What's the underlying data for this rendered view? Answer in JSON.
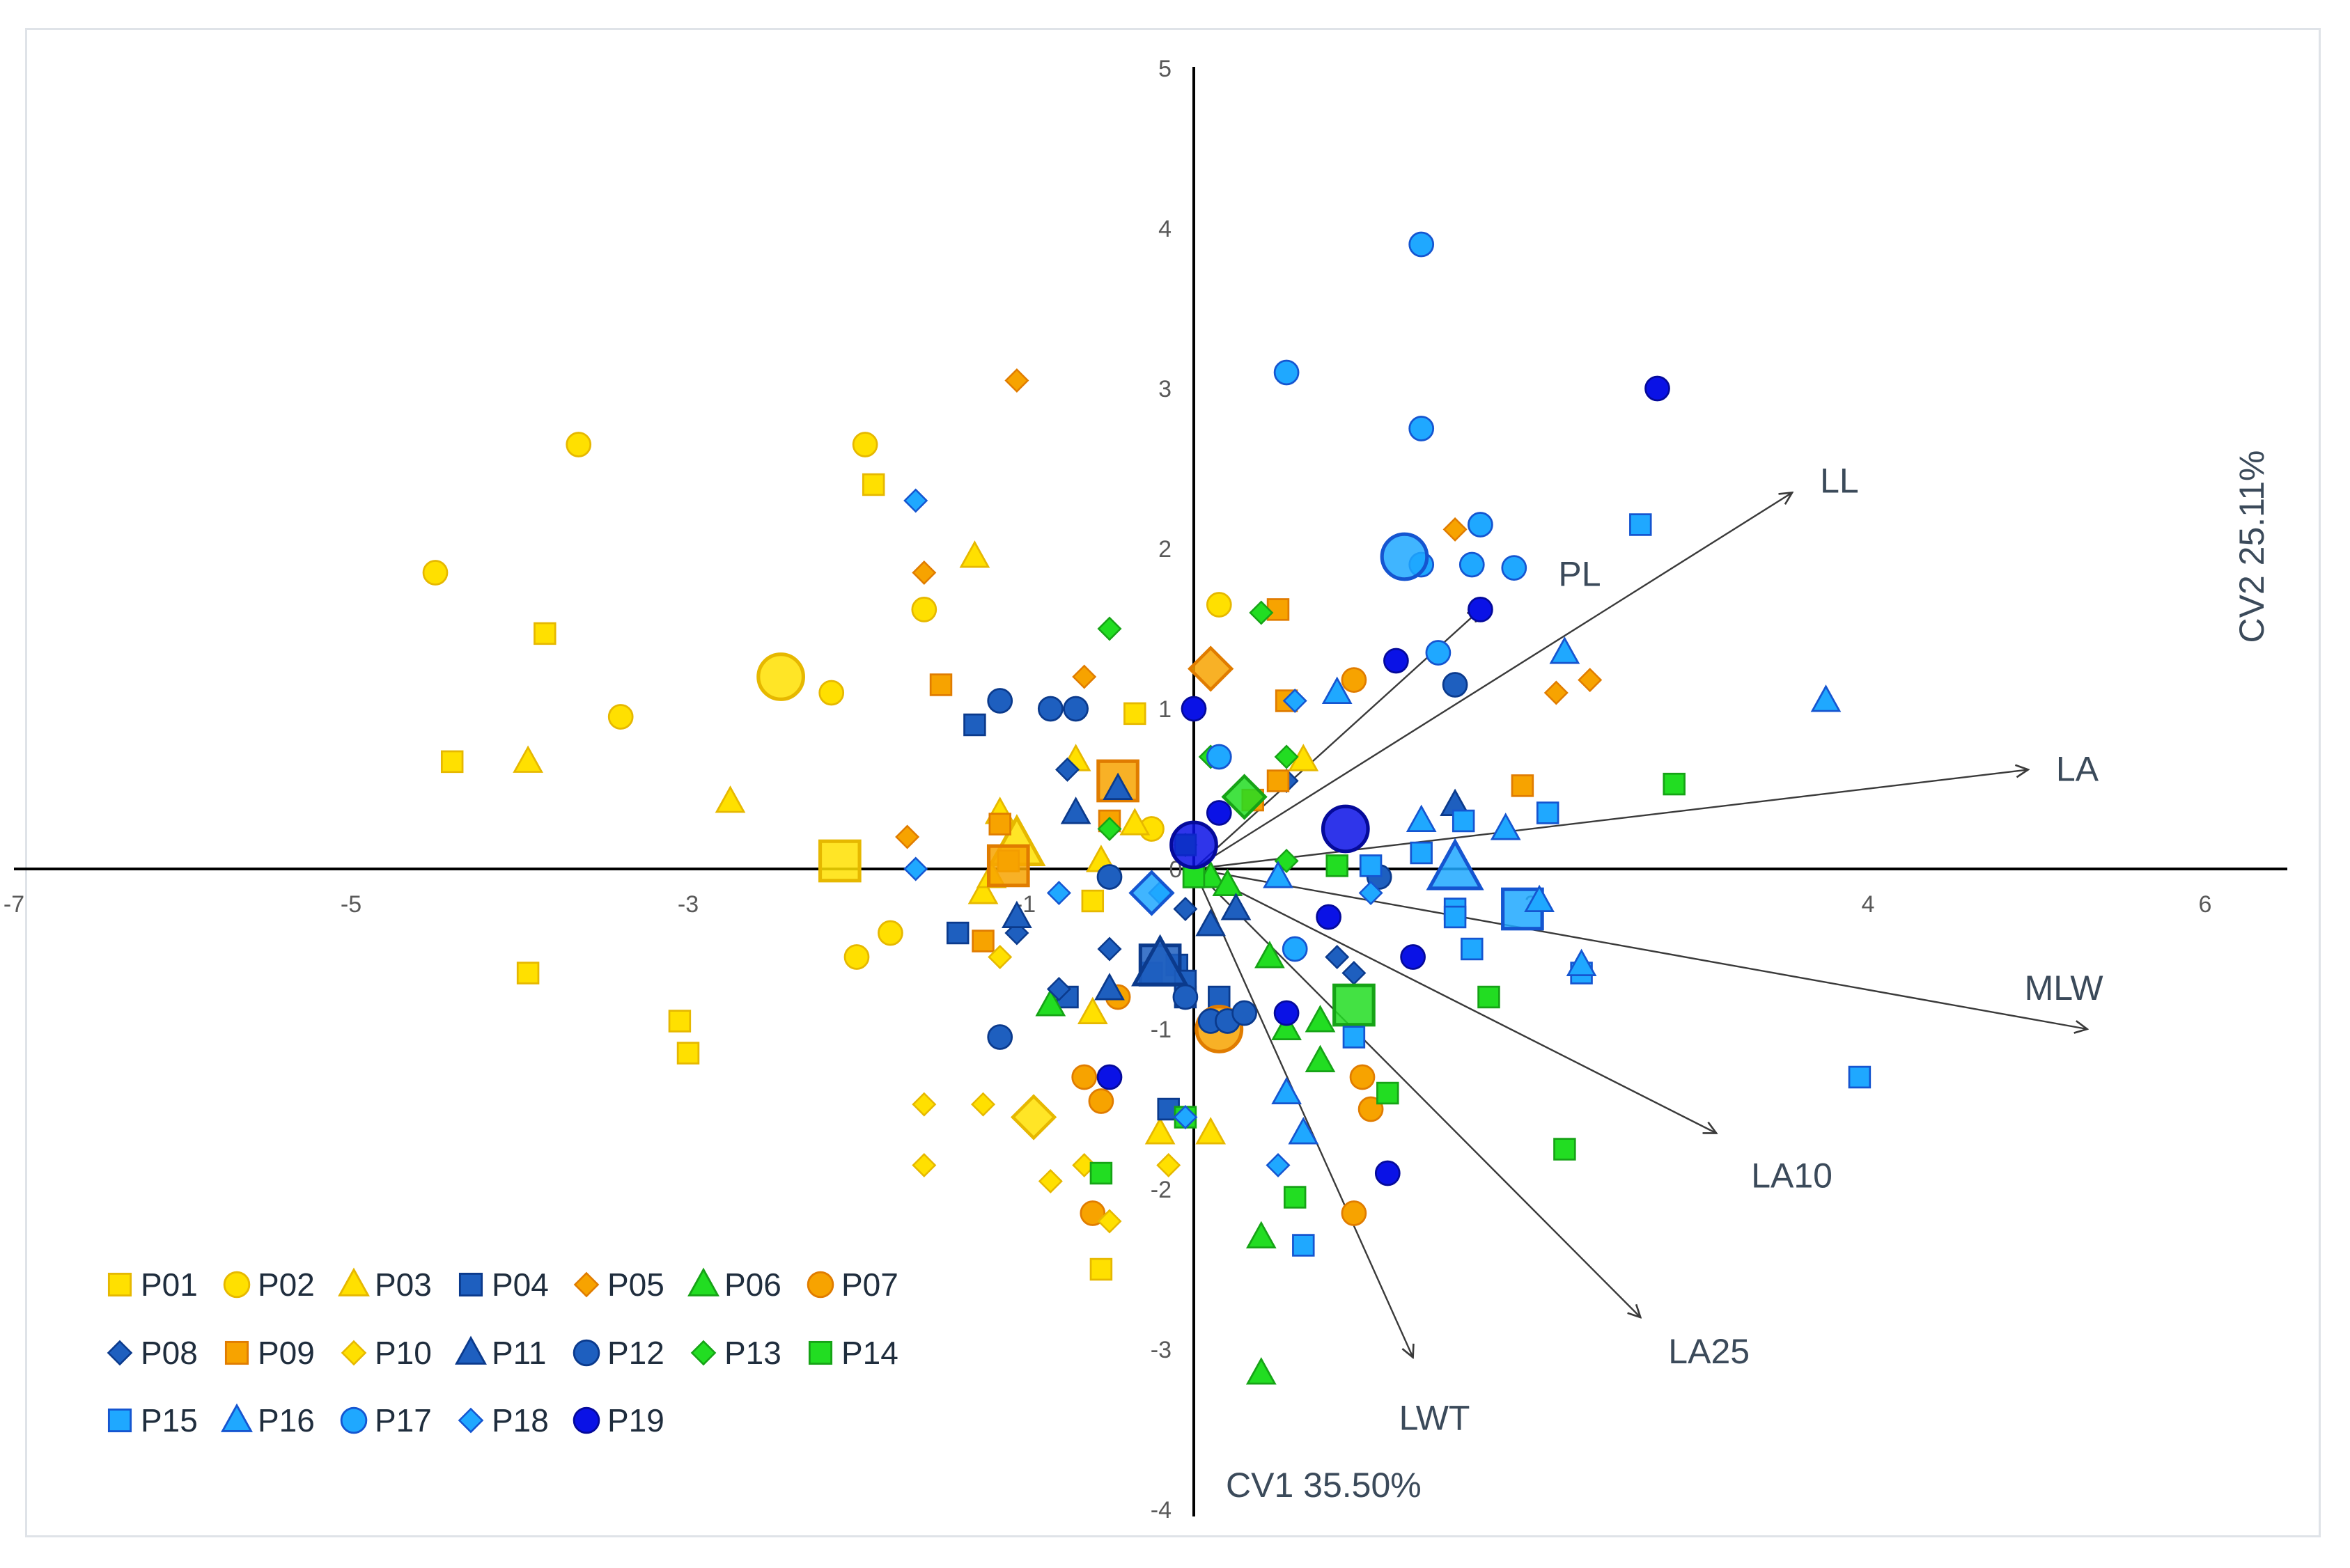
{
  "chart_data": {
    "type": "scatter",
    "title": "",
    "xlabel": "CV1 35.50%",
    "ylabel": "CV2 25.11%",
    "xlim": [
      -7,
      7
    ],
    "ylim": [
      -4,
      5
    ],
    "x_ticks": [
      "-7",
      "-5",
      "-3",
      "-1",
      "0",
      "2",
      "4",
      "6"
    ],
    "x_tick_values": [
      -7,
      -5,
      -3,
      -1,
      0,
      2,
      4,
      6
    ],
    "y_ticks": [
      "-4",
      "-3",
      "-2",
      "-1",
      "1",
      "2",
      "3",
      "4",
      "5"
    ],
    "y_tick_values": [
      -4,
      -3,
      -2,
      -1,
      1,
      2,
      3,
      4,
      5
    ],
    "legend_position": "bottom-left",
    "colors": {
      "yellow": "#FFE000",
      "yellow_edge": "#E6B800",
      "orange": "#F7A300",
      "orange_edge": "#E07C00",
      "darkblue": "#1E5FBF",
      "darkblue_edge": "#0B3A8C",
      "blue": "#1FA8FF",
      "blue_edge": "#1555D0",
      "green": "#22DD22",
      "green_edge": "#16A316",
      "navy": "#0A12E6",
      "navy_edge": "#050A9A"
    },
    "vectors": [
      {
        "name": "LL",
        "x": 3.55,
        "y": 2.35
      },
      {
        "name": "PL",
        "x": 1.7,
        "y": 1.62
      },
      {
        "name": "LA",
        "x": 4.95,
        "y": 0.62
      },
      {
        "name": "MLW",
        "x": 5.3,
        "y": -1.0
      },
      {
        "name": "LA10",
        "x": 3.1,
        "y": -1.65
      },
      {
        "name": "LA25",
        "x": 2.65,
        "y": -2.8
      },
      {
        "name": "LWT",
        "x": 1.3,
        "y": -3.05
      }
    ],
    "series": [
      {
        "name": "P01",
        "marker": "square",
        "color": "yellow",
        "points": [
          [
            -4.4,
            0.67
          ],
          [
            -3.85,
            1.47
          ],
          [
            -3.95,
            -0.65
          ],
          [
            -3.05,
            -0.95
          ],
          [
            -3.0,
            -1.15
          ],
          [
            -1.9,
            2.4
          ],
          [
            -0.35,
            0.97
          ],
          [
            -0.6,
            -0.2
          ],
          [
            -0.55,
            -2.5
          ],
          [
            -2.1,
            0.05,
            "big"
          ]
        ]
      },
      {
        "name": "P02",
        "marker": "circle",
        "color": "yellow",
        "points": [
          [
            -4.5,
            1.85
          ],
          [
            -3.65,
            2.65
          ],
          [
            -3.4,
            0.95
          ],
          [
            -2.15,
            1.1
          ],
          [
            -1.95,
            2.65
          ],
          [
            -1.6,
            1.62
          ],
          [
            -2.0,
            -0.55
          ],
          [
            -1.8,
            -0.4
          ],
          [
            0.15,
            1.65
          ],
          [
            -0.25,
            0.25
          ],
          [
            -2.45,
            1.2,
            "big"
          ]
        ]
      },
      {
        "name": "P03",
        "marker": "triangle",
        "color": "yellow",
        "points": [
          [
            -3.95,
            0.67
          ],
          [
            -2.75,
            0.42
          ],
          [
            -1.3,
            1.95
          ],
          [
            -1.25,
            -0.15
          ],
          [
            -1.2,
            -0.05
          ],
          [
            -1.15,
            0.35
          ],
          [
            -0.7,
            0.68
          ],
          [
            -0.35,
            0.28
          ],
          [
            -0.55,
            0.05
          ],
          [
            0.65,
            0.68
          ],
          [
            -0.6,
            -0.9
          ],
          [
            -0.2,
            -1.65
          ],
          [
            0.1,
            -1.65
          ],
          [
            -1.05,
            0.15,
            "big"
          ]
        ]
      },
      {
        "name": "P04",
        "marker": "square",
        "color": "darkblue",
        "points": [
          [
            -1.3,
            0.9
          ],
          [
            -1.4,
            -0.4
          ],
          [
            -0.75,
            -0.8
          ],
          [
            -0.25,
            -0.65
          ],
          [
            -0.1,
            -0.6
          ],
          [
            -0.05,
            -0.8
          ],
          [
            0.15,
            -0.8
          ],
          [
            -0.15,
            -1.5
          ],
          [
            -0.2,
            -0.6,
            "big"
          ],
          [
            -0.05,
            -0.7
          ]
        ]
      },
      {
        "name": "P05",
        "marker": "diamond",
        "color": "orange",
        "points": [
          [
            -1.05,
            3.05
          ],
          [
            -1.6,
            1.85
          ],
          [
            -0.65,
            1.2
          ],
          [
            -1.7,
            0.2
          ],
          [
            1.55,
            2.12
          ],
          [
            2.15,
            1.1
          ],
          [
            2.35,
            1.18
          ],
          [
            0.1,
            1.25,
            "big"
          ]
        ]
      },
      {
        "name": "P06",
        "marker": "triangle",
        "color": "green",
        "points": [
          [
            -0.85,
            -0.85
          ],
          [
            0.1,
            -0.05
          ],
          [
            0.2,
            -0.1
          ],
          [
            0.45,
            -0.55
          ],
          [
            0.55,
            -1.0
          ],
          [
            0.75,
            -0.95
          ],
          [
            0.75,
            -1.2
          ],
          [
            0.4,
            -2.3
          ],
          [
            0.4,
            -3.15
          ]
        ]
      },
      {
        "name": "P07",
        "marker": "circle",
        "color": "orange",
        "points": [
          [
            -0.65,
            -1.3
          ],
          [
            -0.55,
            -1.45
          ],
          [
            -0.45,
            -0.8
          ],
          [
            -0.6,
            -2.15
          ],
          [
            0.15,
            -1.0,
            "big"
          ],
          [
            0.95,
            1.18
          ],
          [
            1.0,
            -1.3
          ],
          [
            1.05,
            -1.5
          ],
          [
            0.95,
            -2.15
          ]
        ]
      },
      {
        "name": "P08",
        "marker": "diamond",
        "color": "darkblue",
        "points": [
          [
            -0.75,
            0.62
          ],
          [
            -1.05,
            -0.4
          ],
          [
            -0.5,
            -0.5
          ],
          [
            -0.8,
            -0.75
          ],
          [
            0.55,
            0.55
          ],
          [
            0.85,
            -0.55
          ],
          [
            0.95,
            -0.65
          ],
          [
            -0.05,
            -0.25
          ]
        ]
      },
      {
        "name": "P09",
        "marker": "square",
        "color": "orange",
        "points": [
          [
            -1.5,
            1.15
          ],
          [
            -1.15,
            0.28
          ],
          [
            -1.1,
            0.05
          ],
          [
            -1.25,
            -0.45
          ],
          [
            -0.45,
            0.55,
            "big"
          ],
          [
            -0.5,
            0.3
          ],
          [
            0.5,
            1.62
          ],
          [
            0.55,
            1.05
          ],
          [
            0.5,
            0.55
          ],
          [
            0.35,
            0.43
          ],
          [
            1.95,
            0.52
          ],
          [
            -1.1,
            0.02,
            "big"
          ]
        ]
      },
      {
        "name": "P10",
        "marker": "diamond",
        "color": "yellow",
        "points": [
          [
            -1.6,
            -1.47
          ],
          [
            -1.25,
            -1.47
          ],
          [
            -1.15,
            -0.55
          ],
          [
            -1.6,
            -1.85
          ],
          [
            -0.85,
            -1.95
          ],
          [
            -0.65,
            -1.85
          ],
          [
            -0.5,
            -2.2
          ],
          [
            -0.15,
            -1.85
          ],
          [
            -0.95,
            -1.55,
            "big"
          ]
        ]
      },
      {
        "name": "P11",
        "marker": "triangle",
        "color": "darkblue",
        "points": [
          [
            -1.05,
            -0.3
          ],
          [
            -0.7,
            0.35
          ],
          [
            -0.45,
            0.5
          ],
          [
            -0.5,
            -0.75
          ],
          [
            -0.2,
            -0.6,
            "big"
          ],
          [
            0.1,
            -0.35
          ],
          [
            0.25,
            -0.25
          ],
          [
            1.55,
            0.4
          ]
        ]
      },
      {
        "name": "P12",
        "marker": "circle",
        "color": "darkblue",
        "points": [
          [
            -1.15,
            1.05
          ],
          [
            -0.85,
            1.0
          ],
          [
            -0.7,
            1.0
          ],
          [
            -0.5,
            -0.05
          ],
          [
            -1.15,
            -1.05
          ],
          [
            -0.05,
            -0.8
          ],
          [
            0.1,
            -0.95
          ],
          [
            0.2,
            -0.95
          ],
          [
            0.3,
            -0.9
          ],
          [
            1.55,
            1.15
          ],
          [
            1.1,
            -0.05
          ]
        ]
      },
      {
        "name": "P13",
        "marker": "diamond",
        "color": "green",
        "points": [
          [
            -0.5,
            1.5
          ],
          [
            -0.5,
            0.25
          ],
          [
            0.1,
            0.7
          ],
          [
            0.4,
            1.6
          ],
          [
            0.55,
            0.7
          ],
          [
            0.55,
            0.05
          ],
          [
            0.3,
            0.45,
            "big"
          ],
          [
            -0.05,
            0.15
          ]
        ]
      },
      {
        "name": "P14",
        "marker": "square",
        "color": "green",
        "points": [
          [
            -0.05,
            0.15
          ],
          [
            0.0,
            -0.05
          ],
          [
            0.85,
            0.02
          ],
          [
            2.85,
            0.53
          ],
          [
            1.75,
            -0.8
          ],
          [
            2.2,
            -1.75
          ],
          [
            0.6,
            -2.05
          ],
          [
            1.15,
            -1.4
          ],
          [
            0.95,
            -0.85,
            "big"
          ],
          [
            -0.05,
            -1.55
          ],
          [
            -0.55,
            -1.9
          ]
        ]
      },
      {
        "name": "P15",
        "marker": "square",
        "color": "blue",
        "points": [
          [
            2.65,
            2.15
          ],
          [
            2.1,
            0.35
          ],
          [
            1.6,
            0.3
          ],
          [
            1.35,
            0.1
          ],
          [
            1.05,
            0.02
          ],
          [
            1.55,
            -0.25
          ],
          [
            1.65,
            -0.5
          ],
          [
            2.3,
            -0.65
          ],
          [
            3.95,
            -1.3
          ],
          [
            0.95,
            -1.05
          ],
          [
            0.65,
            -2.35
          ],
          [
            1.95,
            -0.25,
            "big"
          ],
          [
            1.55,
            -0.3
          ]
        ]
      },
      {
        "name": "P16",
        "marker": "triangle",
        "color": "blue",
        "points": [
          [
            3.75,
            1.05
          ],
          [
            2.2,
            1.35
          ],
          [
            0.85,
            1.1
          ],
          [
            1.35,
            0.3
          ],
          [
            1.85,
            0.25
          ],
          [
            2.05,
            -0.2
          ],
          [
            2.3,
            -0.6
          ],
          [
            0.55,
            -1.4
          ],
          [
            0.65,
            -1.65
          ],
          [
            1.55,
            0.0,
            "big"
          ],
          [
            0.5,
            -0.05
          ]
        ]
      },
      {
        "name": "P17",
        "marker": "circle",
        "color": "blue",
        "points": [
          [
            1.35,
            3.9
          ],
          [
            0.55,
            3.1
          ],
          [
            1.35,
            2.75
          ],
          [
            1.7,
            2.15
          ],
          [
            1.65,
            1.9
          ],
          [
            1.35,
            1.9
          ],
          [
            1.9,
            1.88
          ],
          [
            1.45,
            1.35
          ],
          [
            0.15,
            0.7
          ],
          [
            0.6,
            -0.5
          ],
          [
            1.25,
            1.95,
            "big"
          ]
        ]
      },
      {
        "name": "P18",
        "marker": "diamond",
        "color": "blue",
        "points": [
          [
            -1.65,
            2.3
          ],
          [
            -1.65,
            0.0
          ],
          [
            0.6,
            1.05
          ],
          [
            -0.8,
            -0.15
          ],
          [
            -0.2,
            -0.15
          ],
          [
            -0.05,
            -1.55
          ],
          [
            0.5,
            -1.85
          ],
          [
            1.05,
            -0.15
          ],
          [
            -0.25,
            -0.15,
            "big"
          ]
        ]
      },
      {
        "name": "P19",
        "marker": "circle",
        "color": "navy",
        "points": [
          [
            2.75,
            3.0
          ],
          [
            1.7,
            1.62
          ],
          [
            1.2,
            1.3
          ],
          [
            0.0,
            1.0
          ],
          [
            0.15,
            0.35
          ],
          [
            0.8,
            -0.3
          ],
          [
            1.3,
            -0.55
          ],
          [
            0.55,
            -0.9
          ],
          [
            -0.5,
            -1.3
          ],
          [
            1.15,
            -1.9
          ],
          [
            0.9,
            0.25,
            "big"
          ],
          [
            0.0,
            0.15,
            "big"
          ]
        ]
      }
    ]
  }
}
